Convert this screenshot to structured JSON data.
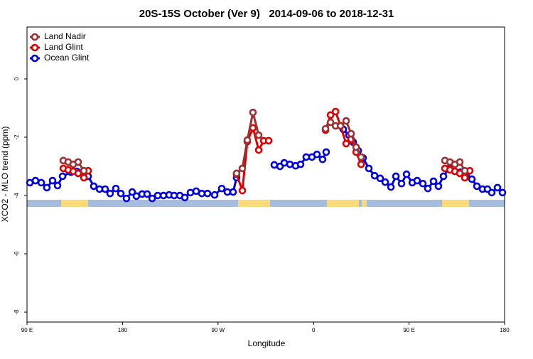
{
  "chart_data": {
    "type": "line",
    "title": "20S-15S October (Ver 9)   2014-09-06 to 2018-12-31",
    "x_label": "Longitude",
    "y_label": "XCO2 - MLO trend (ppm)",
    "xlim": [
      90,
      540
    ],
    "xticks": [
      {
        "value": 90,
        "label": "90 E"
      },
      {
        "value": 180,
        "label": "180"
      },
      {
        "value": 270,
        "label": "90 W"
      },
      {
        "value": 360,
        "label": "0"
      },
      {
        "value": 450,
        "label": "90 E"
      },
      {
        "value": 540,
        "label": "180"
      }
    ],
    "ylim": [
      -8.34,
      1.78
    ],
    "yticks": [
      0,
      -2,
      -4,
      -6,
      -8
    ],
    "legend": "top-left",
    "series": [
      {
        "name": "Land Nadir",
        "color": "#993333",
        "x": [
          124.2,
          128.8,
          133.5,
          138.2,
          143.6,
          null,
          287.5,
          292.9,
          297.6,
          302.9,
          308.3,
          null,
          371.3,
          376.0,
          380.7,
          385.4,
          390.7,
          395.4,
          400.1,
          404.8,
          null,
          483.8,
          488.5,
          493.2,
          497.8,
          502.5
        ],
        "values": [
          -2.8,
          -2.85,
          -2.93,
          -2.85,
          -3.15,
          null,
          -3.24,
          -3.07,
          -2.1,
          -1.15,
          -1.93,
          null,
          -1.71,
          -1.49,
          -1.61,
          -1.61,
          -1.44,
          -1.88,
          -2.34,
          -2.68,
          null,
          -2.8,
          -2.85,
          -2.93,
          -2.85,
          -3.15
        ]
      },
      {
        "name": "Land Glint",
        "color": "#e00000",
        "x": [
          124.2,
          128.8,
          133.5,
          138.2,
          143.6,
          147.6,
          null,
          287.5,
          292.9,
          297.6,
          302.9,
          308.3,
          313.0,
          317.7,
          null,
          371.3,
          376.0,
          380.7,
          385.4,
          390.7,
          395.4,
          400.1,
          404.8,
          null,
          483.8,
          488.5,
          493.2,
          497.8,
          502.5,
          507.2
        ],
        "values": [
          -3.07,
          -3.12,
          -3.17,
          -3.24,
          -3.39,
          -3.15,
          null,
          -3.27,
          -3.83,
          -2.15,
          -1.68,
          -2.44,
          -2.12,
          -2.12,
          null,
          -1.76,
          -1.24,
          -1.12,
          -1.61,
          -2.22,
          -2.07,
          -2.51,
          -2.93,
          null,
          -3.07,
          -3.12,
          -3.17,
          -3.24,
          -3.39,
          -3.15
        ]
      },
      {
        "name": "Ocean Glint",
        "color": "#0000e0",
        "x": [
          92.7,
          98.0,
          103.4,
          108.7,
          114.1,
          118.8,
          123.5,
          131.5,
          136.9,
          142.2,
          147.6,
          152.9,
          158.3,
          163.6,
          168.3,
          173.7,
          178.4,
          183.7,
          189.1,
          193.1,
          198.4,
          203.2,
          207.9,
          213.2,
          218.6,
          223.9,
          228.6,
          234.0,
          238.7,
          244.0,
          249.4,
          254.7,
          260.1,
          266.8,
          273.5,
          278.8,
          284.2,
          287.5,
          null,
          323.0,
          328.4,
          332.4,
          337.7,
          343.1,
          347.8,
          353.1,
          358.5,
          363.2,
          368.5,
          371.9,
          null,
          388.0,
          393.4,
          397.4,
          402.1,
          406.7,
          412.1,
          417.5,
          422.8,
          427.5,
          432.9,
          437.6,
          442.9,
          447.6,
          453.0,
          457.6,
          463.0,
          467.7,
          473.0,
          477.7,
          482.4,
          487.8,
          493.1,
          498.5,
          503.8,
          509.2,
          513.9,
          519.2,
          523.9,
          527.9,
          533.3,
          538.0
        ],
        "values": [
          -3.56,
          -3.49,
          -3.56,
          -3.73,
          -3.49,
          -3.66,
          -3.34,
          -3.2,
          -3.17,
          -3.2,
          -3.34,
          -3.68,
          -3.78,
          -3.78,
          -3.93,
          -3.76,
          -3.93,
          -4.1,
          -3.88,
          -4.02,
          -3.95,
          -3.95,
          -4.1,
          -4.0,
          -4.0,
          -3.98,
          -4.0,
          -4.0,
          -4.07,
          -3.9,
          -3.85,
          -3.93,
          -3.93,
          -3.98,
          -3.76,
          -3.88,
          -3.88,
          -3.39,
          null,
          -2.95,
          -3.0,
          -2.88,
          -2.93,
          -2.98,
          -2.93,
          -2.68,
          -2.68,
          -2.59,
          -2.76,
          -2.51,
          null,
          -1.73,
          -1.93,
          -2.17,
          -2.46,
          -2.71,
          -3.07,
          -3.32,
          -3.41,
          -3.54,
          -3.71,
          -3.34,
          -3.59,
          -3.27,
          -3.56,
          -3.49,
          -3.59,
          -3.76,
          -3.51,
          -3.68,
          -3.34,
          -3.07,
          -3.17,
          -3.2,
          -3.29,
          -3.44,
          -3.68,
          -3.78,
          -3.78,
          -3.9,
          -3.73,
          -3.9
        ]
      }
    ]
  }
}
